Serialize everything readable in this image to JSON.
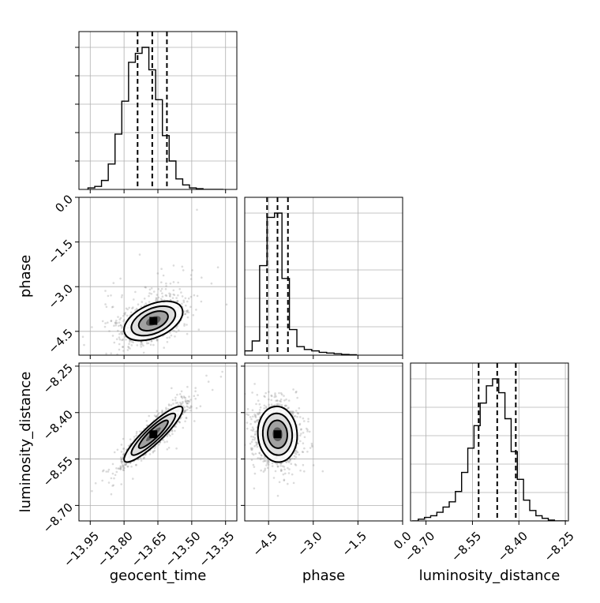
{
  "chart_data": {
    "type": "corner",
    "parameters": [
      "geocent_time",
      "phase",
      "luminosity_distance"
    ],
    "axis_labels": {
      "bottom": [
        "geocent_time",
        "phase",
        "luminosity_distance"
      ],
      "left": [
        "phase",
        "luminosity_distance"
      ]
    },
    "ranges": {
      "geocent_time": [
        -14.0,
        -13.3
      ],
      "phase": [
        -5.3,
        0.0
      ],
      "luminosity_distance": [
        -8.75,
        -8.24
      ]
    },
    "ticks": {
      "geocent_time": [
        "−13.95",
        "−13.80",
        "−13.65",
        "−13.50",
        "−13.35"
      ],
      "phase": [
        "−4.5",
        "−3.0",
        "−1.5",
        "0.0"
      ],
      "luminosity_distance": [
        "−8.70",
        "−8.55",
        "−8.40",
        "−8.25"
      ]
    },
    "tick_values": {
      "geocent_time": [
        -13.95,
        -13.8,
        -13.65,
        -13.5,
        -13.35
      ],
      "phase": [
        -4.5,
        -3.0,
        -1.5,
        0.0
      ],
      "luminosity_distance": [
        -8.7,
        -8.55,
        -8.4,
        -8.25
      ]
    },
    "quantiles": {
      "geocent_time": [
        -13.74,
        -13.675,
        -13.61
      ],
      "phase": [
        -4.55,
        -4.2,
        -3.85
      ],
      "luminosity_distance": [
        -8.53,
        -8.47,
        -8.41
      ]
    },
    "histograms": {
      "geocent_time": {
        "edges": [
          -13.96,
          -13.93,
          -13.9,
          -13.87,
          -13.84,
          -13.81,
          -13.78,
          -13.75,
          -13.72,
          -13.69,
          -13.66,
          -13.63,
          -13.6,
          -13.57,
          -13.54,
          -13.51,
          -13.48,
          -13.45,
          -13.42,
          -13.39,
          -13.36
        ],
        "counts": [
          0.01,
          0.02,
          0.06,
          0.17,
          0.37,
          0.59,
          0.85,
          0.91,
          0.95,
          0.8,
          0.6,
          0.36,
          0.19,
          0.07,
          0.03,
          0.01,
          0.005,
          0.0,
          0.0,
          0.0
        ]
      },
      "phase": {
        "edges": [
          -5.3,
          -5.05,
          -4.8,
          -4.55,
          -4.3,
          -4.05,
          -3.8,
          -3.55,
          -3.3,
          -3.05,
          -2.8,
          -2.55,
          -2.3,
          -2.05,
          -1.8,
          -1.55
        ],
        "counts": [
          0.03,
          0.1,
          0.63,
          0.97,
          1.0,
          0.54,
          0.18,
          0.06,
          0.04,
          0.03,
          0.02,
          0.015,
          0.01,
          0.005,
          0.003
        ]
      },
      "luminosity_distance": {
        "edges": [
          -8.745,
          -8.725,
          -8.705,
          -8.685,
          -8.665,
          -8.645,
          -8.625,
          -8.605,
          -8.585,
          -8.565,
          -8.545,
          -8.525,
          -8.505,
          -8.485,
          -8.465,
          -8.445,
          -8.425,
          -8.405,
          -8.385,
          -8.365,
          -8.345,
          -8.325,
          -8.305,
          -8.285,
          -8.265,
          -8.245
        ],
        "counts": [
          0.0,
          0.01,
          0.02,
          0.03,
          0.05,
          0.08,
          0.11,
          0.17,
          0.28,
          0.42,
          0.55,
          0.68,
          0.78,
          0.82,
          0.74,
          0.59,
          0.4,
          0.24,
          0.12,
          0.06,
          0.03,
          0.015,
          0.005,
          0.0,
          0.0
        ]
      }
    },
    "pairs": [
      {
        "x": "geocent_time",
        "y": "phase",
        "center": [
          -13.67,
          -4.15
        ],
        "sigma": [
          0.065,
          0.33
        ],
        "rho": 0.45,
        "extent_x": [
          -13.96,
          -13.33
        ],
        "extent_y": [
          -5.2,
          -0.3
        ]
      },
      {
        "x": "geocent_time",
        "y": "luminosity_distance",
        "center": [
          -13.67,
          -8.47
        ],
        "sigma": [
          0.065,
          0.045
        ],
        "rho": 0.9,
        "extent_x": [
          -13.95,
          -13.4
        ],
        "extent_y": [
          -8.75,
          -8.24
        ]
      },
      {
        "x": "phase",
        "y": "luminosity_distance",
        "center": [
          -4.2,
          -8.47
        ],
        "sigma": [
          0.33,
          0.045
        ],
        "rho": -0.05,
        "extent_x": [
          -5.3,
          -0.5
        ],
        "extent_y": [
          -8.75,
          -8.25
        ]
      }
    ],
    "contour_levels": [
      0.5,
      1.0,
      1.5,
      2.0
    ],
    "grid": true,
    "colors": {
      "line": "#000000",
      "points": "#7f7f7f",
      "grid": "#b0b0b0"
    }
  }
}
